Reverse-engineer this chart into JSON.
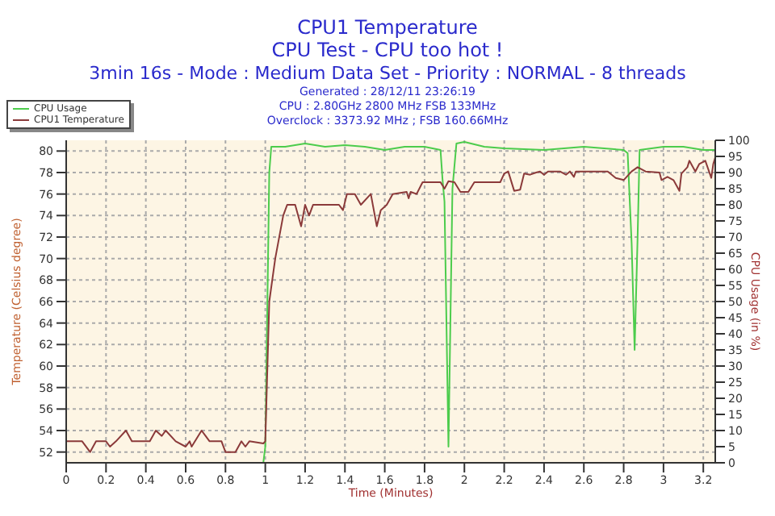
{
  "chart_data": {
    "type": "line",
    "title": "CPU1 Temperature",
    "subtitle": "CPU Test - CPU too hot !",
    "annotations": [
      "3min 16s - Mode : Medium Data Set - Priority : NORMAL - 8 threads",
      "Generated : 28/12/11 23:26:19",
      "CPU : 2.80GHz 2800 MHz FSB 133MHz",
      "Overclock : 3373.92 MHz ; FSB 160.66MHz"
    ],
    "xlabel": "Time (Minutes)",
    "ylabel": "Temperature (Celsius degree)",
    "y2label": "CPU Usage (in %)",
    "xlim": [
      0,
      3.26
    ],
    "xticks": [
      0,
      0.2,
      0.4,
      0.6,
      0.8,
      1,
      1.2,
      1.4,
      1.6,
      1.8,
      2,
      2.2,
      2.4,
      2.6,
      2.8,
      3,
      3.2
    ],
    "ylim": [
      51,
      81
    ],
    "yticks": [
      52,
      54,
      56,
      58,
      60,
      62,
      64,
      66,
      68,
      70,
      72,
      74,
      76,
      78,
      80
    ],
    "y2lim": [
      0,
      100
    ],
    "y2ticks": [
      0,
      5,
      10,
      15,
      20,
      25,
      30,
      35,
      40,
      45,
      50,
      55,
      60,
      65,
      70,
      75,
      80,
      85,
      90,
      95,
      100
    ],
    "grid": true,
    "legend": "top left",
    "marker": "none",
    "series": [
      {
        "name": "CPU Usage",
        "color": "#4ccc4c",
        "axis": "y2",
        "x": [
          0,
          0.99,
          1.0,
          1.02,
          1.03,
          1.1,
          1.2,
          1.3,
          1.4,
          1.5,
          1.6,
          1.7,
          1.8,
          1.88,
          1.89,
          1.9,
          1.92,
          1.94,
          1.96,
          2.0,
          2.1,
          2.2,
          2.4,
          2.6,
          2.8,
          2.82,
          2.84,
          2.855,
          2.87,
          2.88,
          3.0,
          3.1,
          3.2,
          3.26
        ],
        "values": [
          0,
          0,
          5,
          90,
          98,
          98,
          99,
          98,
          98.5,
          98,
          97,
          98,
          98,
          97,
          88,
          81,
          5,
          85,
          99,
          99.5,
          98,
          97.5,
          97,
          98,
          97,
          96,
          68,
          35,
          70,
          97,
          98,
          98,
          97,
          97
        ]
      },
      {
        "name": "CPU1 Temperature",
        "color": "#8b3a3a",
        "x": [
          0,
          0.08,
          0.12,
          0.15,
          0.2,
          0.22,
          0.25,
          0.3,
          0.33,
          0.42,
          0.45,
          0.48,
          0.5,
          0.55,
          0.6,
          0.62,
          0.63,
          0.68,
          0.72,
          0.78,
          0.8,
          0.85,
          0.88,
          0.9,
          0.92,
          0.99,
          1.0,
          1.02,
          1.05,
          1.09,
          1.11,
          1.15,
          1.18,
          1.2,
          1.22,
          1.24,
          1.37,
          1.39,
          1.41,
          1.45,
          1.48,
          1.53,
          1.56,
          1.58,
          1.61,
          1.64,
          1.71,
          1.72,
          1.73,
          1.76,
          1.79,
          1.88,
          1.9,
          1.92,
          1.95,
          1.98,
          2.02,
          2.05,
          2.18,
          2.2,
          2.22,
          2.25,
          2.28,
          2.3,
          2.33,
          2.36,
          2.38,
          2.4,
          2.42,
          2.48,
          2.51,
          2.53,
          2.55,
          2.56,
          2.72,
          2.76,
          2.8,
          2.84,
          2.87,
          2.91,
          2.98,
          2.99,
          3.02,
          3.05,
          3.08,
          3.09,
          3.12,
          3.13,
          3.16,
          3.18,
          3.21,
          3.24,
          3.25,
          3.26
        ],
        "values": [
          53,
          53,
          52,
          53,
          53,
          52.5,
          53,
          54,
          53,
          53,
          54,
          53.5,
          54,
          53,
          52.5,
          53,
          52.5,
          54,
          53,
          53,
          52,
          52,
          53,
          52.5,
          53,
          52.8,
          53,
          66,
          70,
          74,
          75,
          75,
          73,
          75,
          74,
          75,
          75,
          74.5,
          76,
          76,
          75,
          76,
          73,
          74.5,
          75,
          76,
          76.2,
          75.6,
          76.2,
          76,
          77.1,
          77.1,
          76.5,
          77.2,
          77.1,
          76.2,
          76.2,
          77.1,
          77.1,
          77.9,
          78.1,
          76.3,
          76.4,
          77.9,
          77.8,
          78,
          78.1,
          77.8,
          78.1,
          78.1,
          77.8,
          78.1,
          77.6,
          78.1,
          78.1,
          77.5,
          77.3,
          78.1,
          78.5,
          78.1,
          78,
          77.3,
          77.6,
          77.3,
          76.3,
          77.9,
          78.5,
          79.1,
          78.1,
          78.8,
          79.1,
          77.5,
          78.8,
          79.4
        ]
      }
    ]
  }
}
